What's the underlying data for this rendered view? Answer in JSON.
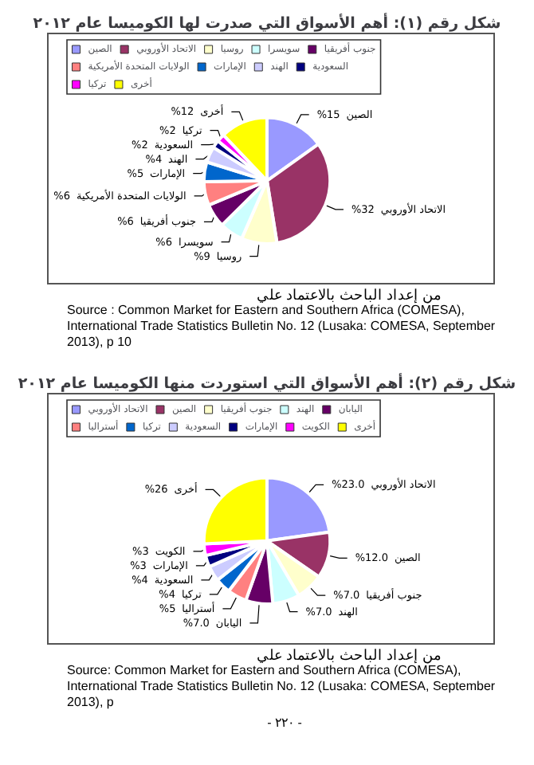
{
  "chart_data": [
    {
      "type": "pie",
      "title": "شكل رقم (١): أهم الأسواق التي صدرت لها الكوميسا عام ٢٠١٢",
      "categories": [
        "الصين",
        "الاتحاد الأوروبي",
        "روسيا",
        "سويسرا",
        "جنوب أفريقيا",
        "الولايات المتحدة الأمريكية",
        "الإمارات",
        "الهند",
        "السعودية",
        "تركيا",
        "أخرى"
      ],
      "values": [
        15,
        32,
        9,
        6,
        6,
        6,
        5,
        4,
        2,
        2,
        12
      ],
      "value_labels": [
        "%15",
        "%32",
        "%9",
        "%6",
        "%6",
        "%6",
        "%5",
        "%4",
        "%2",
        "%2",
        "%12"
      ],
      "colors": [
        "#9999ff",
        "#993366",
        "#ffffcc",
        "#ccffff",
        "#660066",
        "#ff8080",
        "#0066cc",
        "#ccccff",
        "#000080",
        "#ff00ff",
        "#ffff00"
      ],
      "legend": "top",
      "annotations": [
        "من إعداد الباحث بالاعتماد علي",
        "Source : Common Market for Eastern and Southern Africa (COMESA), International Trade Statistics Bulletin No. 12 (Lusaka: COMESA, September 2013), p 10"
      ]
    },
    {
      "type": "pie",
      "title": "شكل رقم (٢): أهم الأسواق التي استوردت منها الكوميسا عام ٢٠١٢",
      "categories": [
        "الاتحاد الأوروبي",
        "الصين",
        "جنوب أفريقيا",
        "الهند",
        "اليابان",
        "أستراليا",
        "تركيا",
        "السعودية",
        "الإمارات",
        "الكويت",
        "أخرى"
      ],
      "values": [
        23.0,
        12.0,
        7.0,
        7.0,
        7.0,
        5,
        4,
        4,
        3,
        3,
        26
      ],
      "value_labels": [
        "%23.0",
        "%12.0",
        "%7.0",
        "%7.0",
        "%7.0",
        "%5",
        "%4",
        "%4",
        "%3",
        "%3",
        "%26"
      ],
      "colors": [
        "#9999ff",
        "#993366",
        "#ffffcc",
        "#ccffff",
        "#660066",
        "#ff8080",
        "#0066cc",
        "#ccccff",
        "#000080",
        "#ff00ff",
        "#ffff00"
      ],
      "legend": "top",
      "annotations": [
        "من إعداد الباحث بالاعتماد علي",
        "Source: Common Market for Eastern and Southern Africa (COMESA), International Trade Statistics Bulletin No. 12 (Lusaka: COMESA, September 2013), p",
        "- ٢٢٠ -"
      ]
    }
  ]
}
